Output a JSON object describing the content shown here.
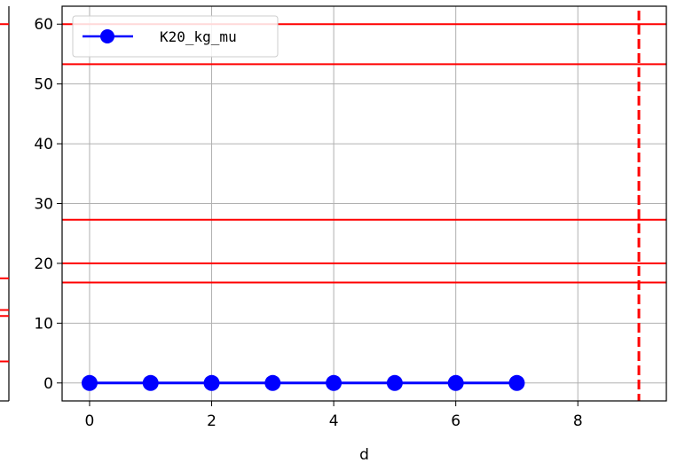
{
  "chart_data": {
    "type": "line",
    "xlabel": "d",
    "ylabel": "",
    "xlim": [
      -0.45,
      9.45
    ],
    "ylim": [
      -3,
      63
    ],
    "xticks": [
      0,
      2,
      4,
      6,
      8
    ],
    "yticks": [
      0,
      10,
      20,
      30,
      40,
      50,
      60
    ],
    "grid": true,
    "legend_position": "top-left",
    "series": [
      {
        "name": "K20_kg_mu",
        "color": "#0000ff",
        "marker": "circle",
        "x": [
          0,
          1,
          2,
          3,
          4,
          5,
          6,
          7
        ],
        "y": [
          0,
          0,
          0,
          0,
          0,
          0,
          0,
          0
        ]
      }
    ],
    "hlines": [
      {
        "y": 60,
        "color": "#ff0000"
      },
      {
        "y": 53.3,
        "color": "#ff0000"
      },
      {
        "y": 27.3,
        "color": "#ff0000"
      },
      {
        "y": 20,
        "color": "#ff0000"
      },
      {
        "y": 16.8,
        "color": "#ff0000"
      }
    ],
    "vlines": [
      {
        "x": 9,
        "color": "#ff0000",
        "style": "dashed"
      }
    ],
    "left_panel_hlines_partial": [
      {
        "y": 60,
        "color": "#ff0000"
      },
      {
        "y": 17.5,
        "color": "#ff0000"
      },
      {
        "y": 12.2,
        "color": "#ff0000"
      },
      {
        "y": 11.2,
        "color": "#ff0000"
      },
      {
        "y": 3.6,
        "color": "#ff0000"
      }
    ]
  }
}
